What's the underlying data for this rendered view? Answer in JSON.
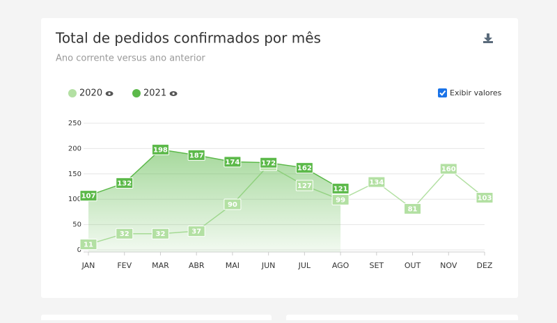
{
  "chart_data": {
    "type": "line",
    "title": "Total de pedidos confirmados por mês",
    "subtitle": "Ano corrente versus ano anterior",
    "show_values_label": "Exibir valores",
    "show_values": true,
    "categories": [
      "JAN",
      "FEV",
      "MAR",
      "ABR",
      "MAI",
      "JUN",
      "JUL",
      "AGO",
      "SET",
      "OUT",
      "NOV",
      "DEZ"
    ],
    "series": [
      {
        "name": "2020",
        "color": "#b3e0a3",
        "fill": false,
        "values": [
          11,
          32,
          32,
          37,
          90,
          167,
          127,
          99,
          134,
          81,
          160,
          103
        ]
      },
      {
        "name": "2021",
        "color": "#5cb94a",
        "fill": true,
        "values": [
          107,
          132,
          198,
          187,
          174,
          172,
          162,
          121,
          null,
          null,
          null,
          null
        ]
      }
    ],
    "ylim": [
      0,
      250
    ],
    "yticks": [
      0,
      50,
      100,
      150,
      200,
      250
    ],
    "grid": true
  }
}
